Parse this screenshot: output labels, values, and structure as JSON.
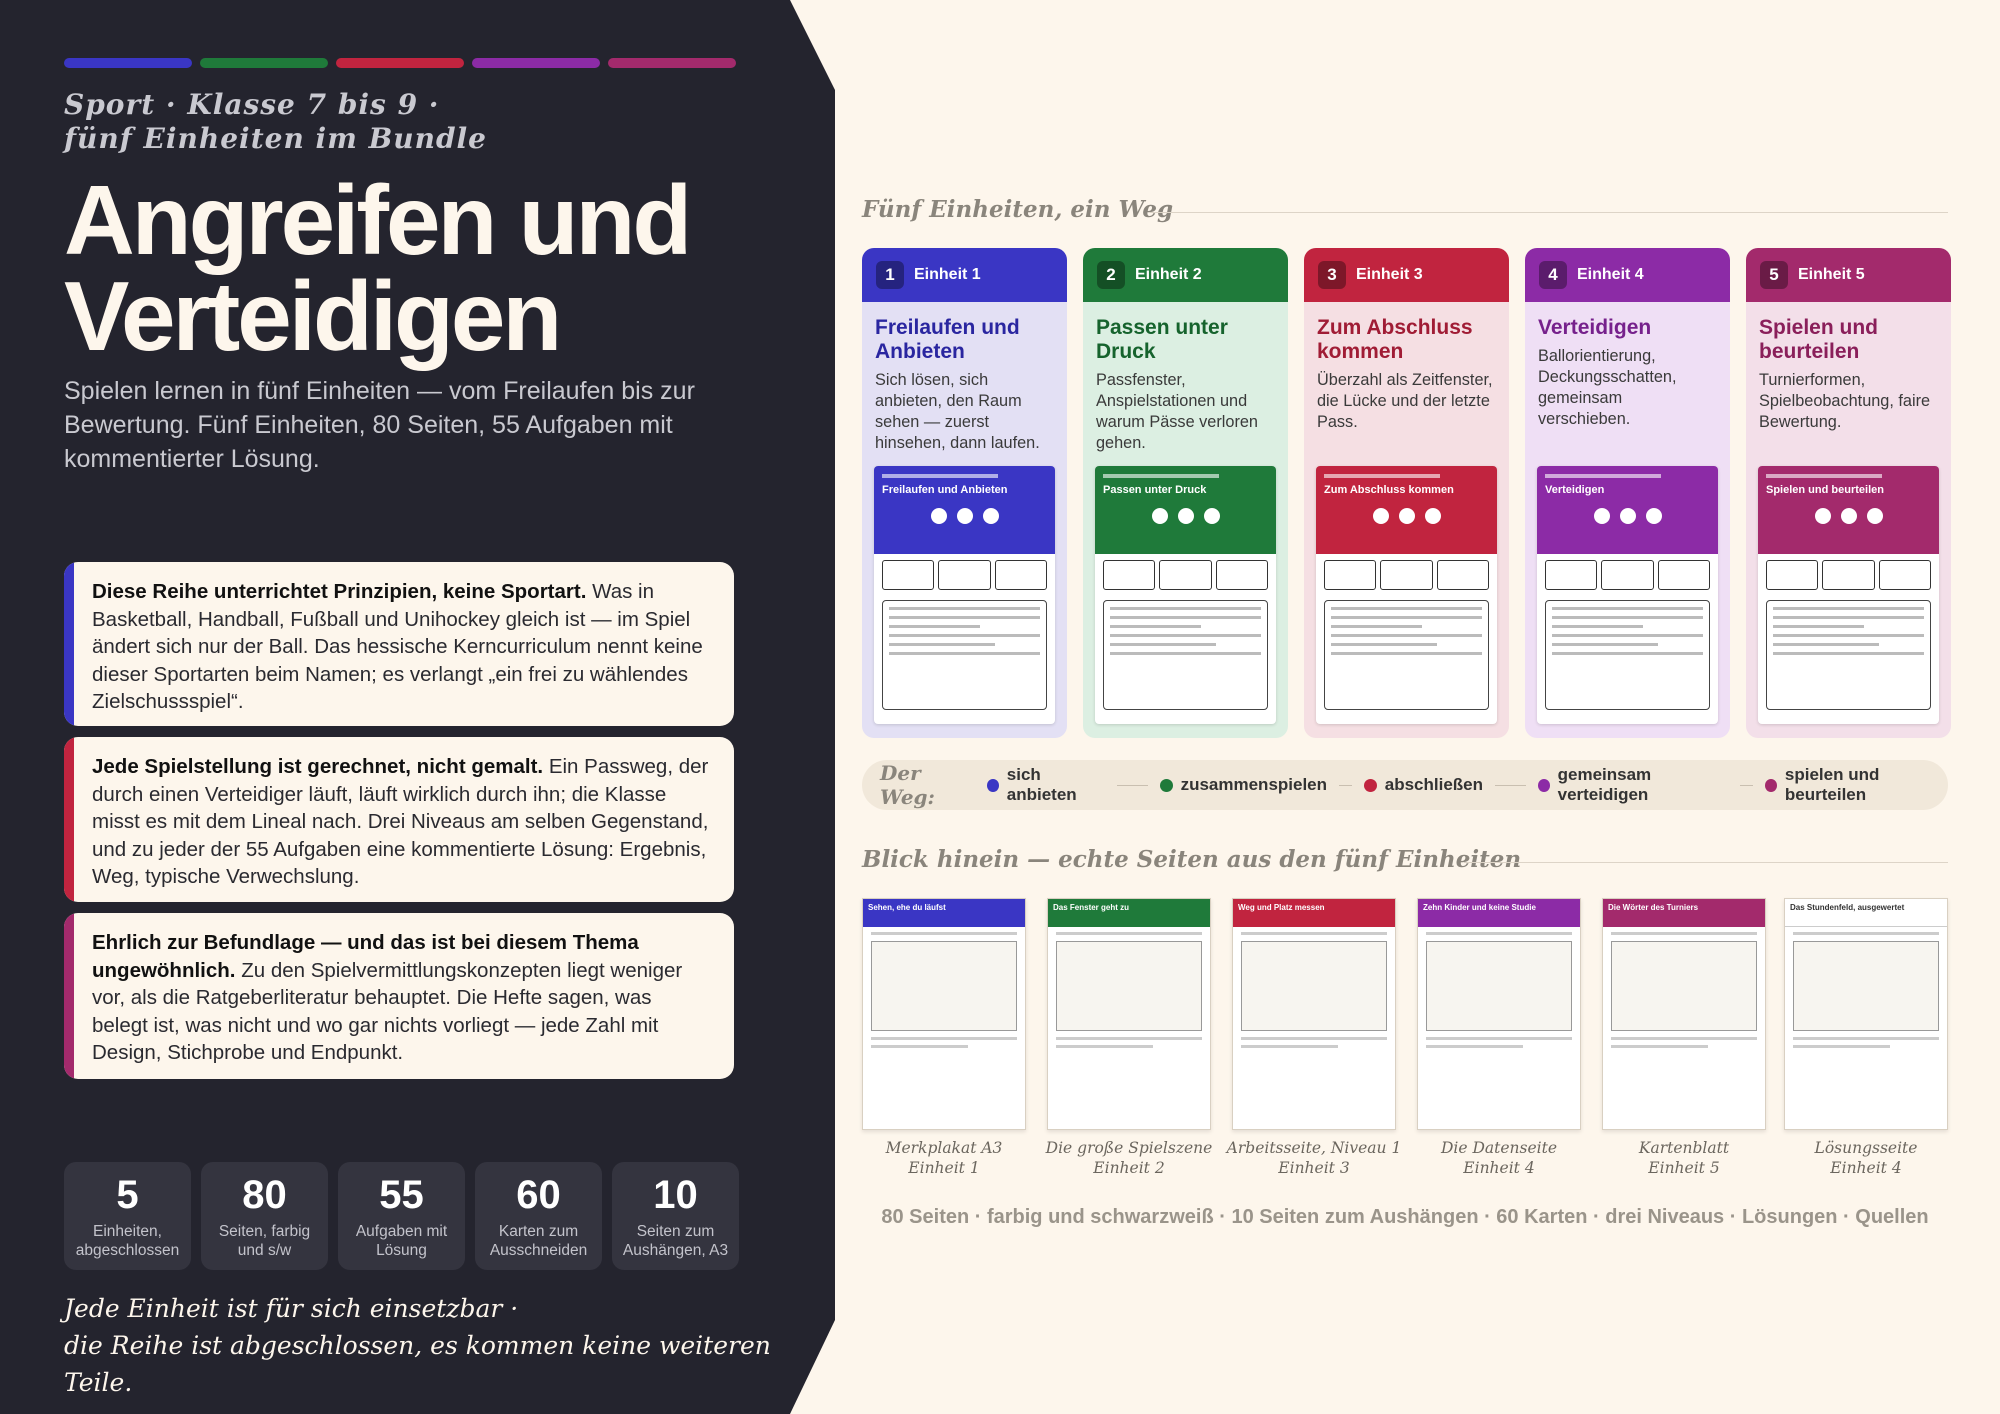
{
  "colors": {
    "blue": "#3a36c4",
    "green": "#1f7a3a",
    "red": "#c1243f",
    "purple": "#8c2ba6",
    "magenta": "#a32a6c"
  },
  "left": {
    "kicker_line1": "Sport · Klasse 7 bis 9 ·",
    "kicker_line2": "fünf Einheiten im Bundle",
    "title_line1": "Angreifen und",
    "title_line2": "Verteidigen",
    "subtitle": "Spielen lernen in fünf Einheiten — vom Freilaufen bis zur Bewertung. Fünf Einheiten, 80 Seiten, 55 Aufgaben mit kommentierter Lösung.",
    "boxes": [
      {
        "bold": "Diese Reihe unterrichtet Prinzipien, keine Sportart.",
        "text": " Was in Basketball, Handball, Fußball und Unihockey gleich ist — im Spiel ändert sich nur der Ball. Das hessische Kerncurriculum nennt keine dieser Sportarten beim Namen; es verlangt „ein frei zu wählendes Zielschussspiel“."
      },
      {
        "bold": "Jede Spielstellung ist gerechnet, nicht gemalt.",
        "text": " Ein Passweg, der durch einen Verteidiger läuft, läuft wirklich durch ihn; die Klasse misst es mit dem Lineal nach. Drei Niveaus am selben Gegenstand, und zu jeder der 55 Aufgaben eine kommentierte Lösung: Ergebnis, Weg, typische Verwechslung."
      },
      {
        "bold": "Ehrlich zur Befundlage — und das ist bei diesem Thema ungewöhnlich.",
        "text": " Zu den Spielvermittlungskonzepten liegt weniger vor, als die Ratgeberliteratur behauptet. Die Hefte sagen, was belegt ist, was nicht und wo gar nichts vorliegt — jede Zahl mit Design, Stichprobe und Endpunkt."
      }
    ],
    "stats": [
      {
        "n": "5",
        "l1": "Einheiten,",
        "l2": "abgeschlossen"
      },
      {
        "n": "80",
        "l1": "Seiten, farbig",
        "l2": "und s/w"
      },
      {
        "n": "55",
        "l1": "Aufgaben mit",
        "l2": "Lösung"
      },
      {
        "n": "60",
        "l1": "Karten zum",
        "l2": "Ausschneiden"
      },
      {
        "n": "10",
        "l1": "Seiten zum",
        "l2": "Aushängen, A3"
      }
    ],
    "footer_line1": "Jede Einheit ist für sich einsetzbar ·",
    "footer_line2": "die Reihe ist abgeschlossen, es kommen keine weiteren Teile."
  },
  "units_heading": "Fünf Einheiten, ein Weg",
  "units": [
    {
      "num": "1",
      "label": "Einheit 1",
      "title": "Freilaufen und Anbieten",
      "desc": "Sich lösen, sich anbieten, den Raum sehen — zuerst hinsehen, dann laufen.",
      "thumb_title": "Freilaufen und Anbieten"
    },
    {
      "num": "2",
      "label": "Einheit 2",
      "title": "Passen unter Druck",
      "desc": "Passfenster, Anspielstationen und warum Pässe verloren gehen.",
      "thumb_title": "Passen unter Druck"
    },
    {
      "num": "3",
      "label": "Einheit 3",
      "title": "Zum Abschluss kommen",
      "desc": "Überzahl als Zeitfenster, die Lücke und der letzte Pass.",
      "thumb_title": "Zum Abschluss kommen"
    },
    {
      "num": "4",
      "label": "Einheit 4",
      "title": "Verteidigen",
      "desc": "Ballorientierung, Deckungsschatten, gemeinsam verschieben.",
      "thumb_title": "Verteidigen"
    },
    {
      "num": "5",
      "label": "Einheit 5",
      "title": "Spielen und beurteilen",
      "desc": "Turnierformen, Spielbeobachtung, faire Bewertung.",
      "thumb_title": "Spielen und beurteilen"
    }
  ],
  "way": {
    "label": "Der Weg:",
    "steps": [
      "sich anbieten",
      "zusammenspielen",
      "abschließen",
      "gemeinsam verteidigen",
      "spielen und beurteilen"
    ]
  },
  "pages_heading": "Blick hinein — echte Seiten aus den fünf Einheiten",
  "pages": [
    {
      "header": "Sehen, ehe du läufst",
      "cap1": "Merkplakat A3",
      "cap2": "Einheit 1"
    },
    {
      "header": "Das Fenster geht zu",
      "cap1": "Die große Spielszene",
      "cap2": "Einheit 2"
    },
    {
      "header": "Weg und Platz messen",
      "cap1": "Arbeitsseite, Niveau 1",
      "cap2": "Einheit 3"
    },
    {
      "header": "Zehn Kinder und keine Studie",
      "cap1": "Die Datenseite",
      "cap2": "Einheit 4"
    },
    {
      "header": "Die Wörter des Turniers",
      "cap1": "Kartenblatt",
      "cap2": "Einheit 5"
    },
    {
      "header": "Das Stundenfeld, ausgewertet",
      "cap1": "Lösungsseite",
      "cap2": "Einheit 4"
    }
  ],
  "bottom_line": "80 Seiten · farbig und schwarzweiß · 10 Seiten zum Aushängen · 60 Karten · drei Niveaus · Lösungen · Quellen"
}
